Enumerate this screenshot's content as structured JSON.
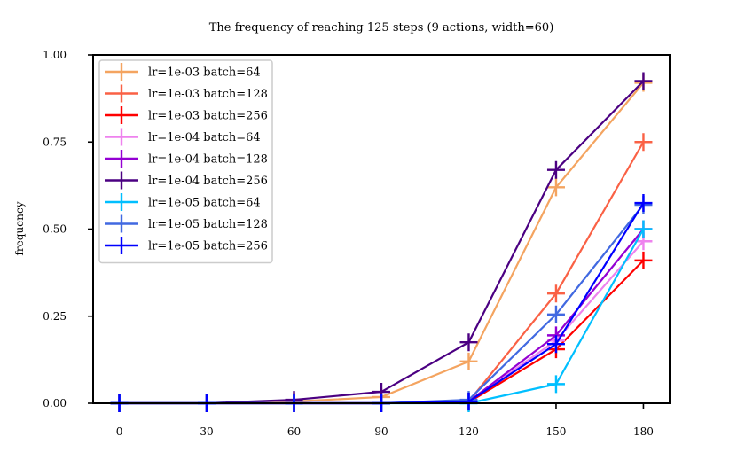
{
  "chart_data": {
    "type": "line",
    "title": "The frequency of reaching 125 steps (9 actions, width=60)",
    "xlabel": "",
    "ylabel": "frequency",
    "x": [
      0,
      30,
      60,
      90,
      120,
      150,
      180
    ],
    "xticks": [
      "0",
      "30",
      "60",
      "90",
      "120",
      "150",
      "180"
    ],
    "yticks": [
      "0.00",
      "0.25",
      "0.50",
      "0.75",
      "1.00"
    ],
    "ytick_values": [
      0,
      0.25,
      0.5,
      0.75,
      1.0
    ],
    "xlim": [
      -9,
      189
    ],
    "ylim": [
      0,
      1.0
    ],
    "grid": false,
    "legend_position": "top-left",
    "marker": "plus",
    "series": [
      {
        "name": "lr=1e-03 batch=64",
        "color": "#F4A460",
        "values": [
          0,
          0,
          0.005,
          0.018,
          0.12,
          0.62,
          0.92
        ]
      },
      {
        "name": "lr=1e-03 batch=128",
        "color": "#FA6145",
        "values": [
          0,
          0,
          0,
          0,
          0.005,
          0.315,
          0.75
        ]
      },
      {
        "name": "lr=1e-03 batch=256",
        "color": "#FF0000",
        "values": [
          0,
          0,
          0,
          0,
          0.003,
          0.155,
          0.41
        ]
      },
      {
        "name": "lr=1e-04 batch=64",
        "color": "#EE82EE",
        "values": [
          0,
          0,
          0,
          0,
          0.005,
          0.18,
          0.465
        ]
      },
      {
        "name": "lr=1e-04 batch=128",
        "color": "#9400D3",
        "values": [
          0,
          0,
          0,
          0,
          0.005,
          0.195,
          0.5
        ]
      },
      {
        "name": "lr=1e-04 batch=256",
        "color": "#4B0082",
        "values": [
          0,
          0,
          0.01,
          0.033,
          0.175,
          0.67,
          0.925
        ]
      },
      {
        "name": "lr=1e-05 batch=64",
        "color": "#00BFFF",
        "values": [
          0,
          0,
          0,
          0,
          0,
          0.055,
          0.5
        ]
      },
      {
        "name": "lr=1e-05 batch=128",
        "color": "#4169E1",
        "values": [
          0,
          0,
          0,
          0,
          0.01,
          0.255,
          0.57
        ]
      },
      {
        "name": "lr=1e-05 batch=256",
        "color": "#0000FF",
        "values": [
          0,
          0,
          0,
          0,
          0.005,
          0.17,
          0.575
        ]
      }
    ]
  }
}
